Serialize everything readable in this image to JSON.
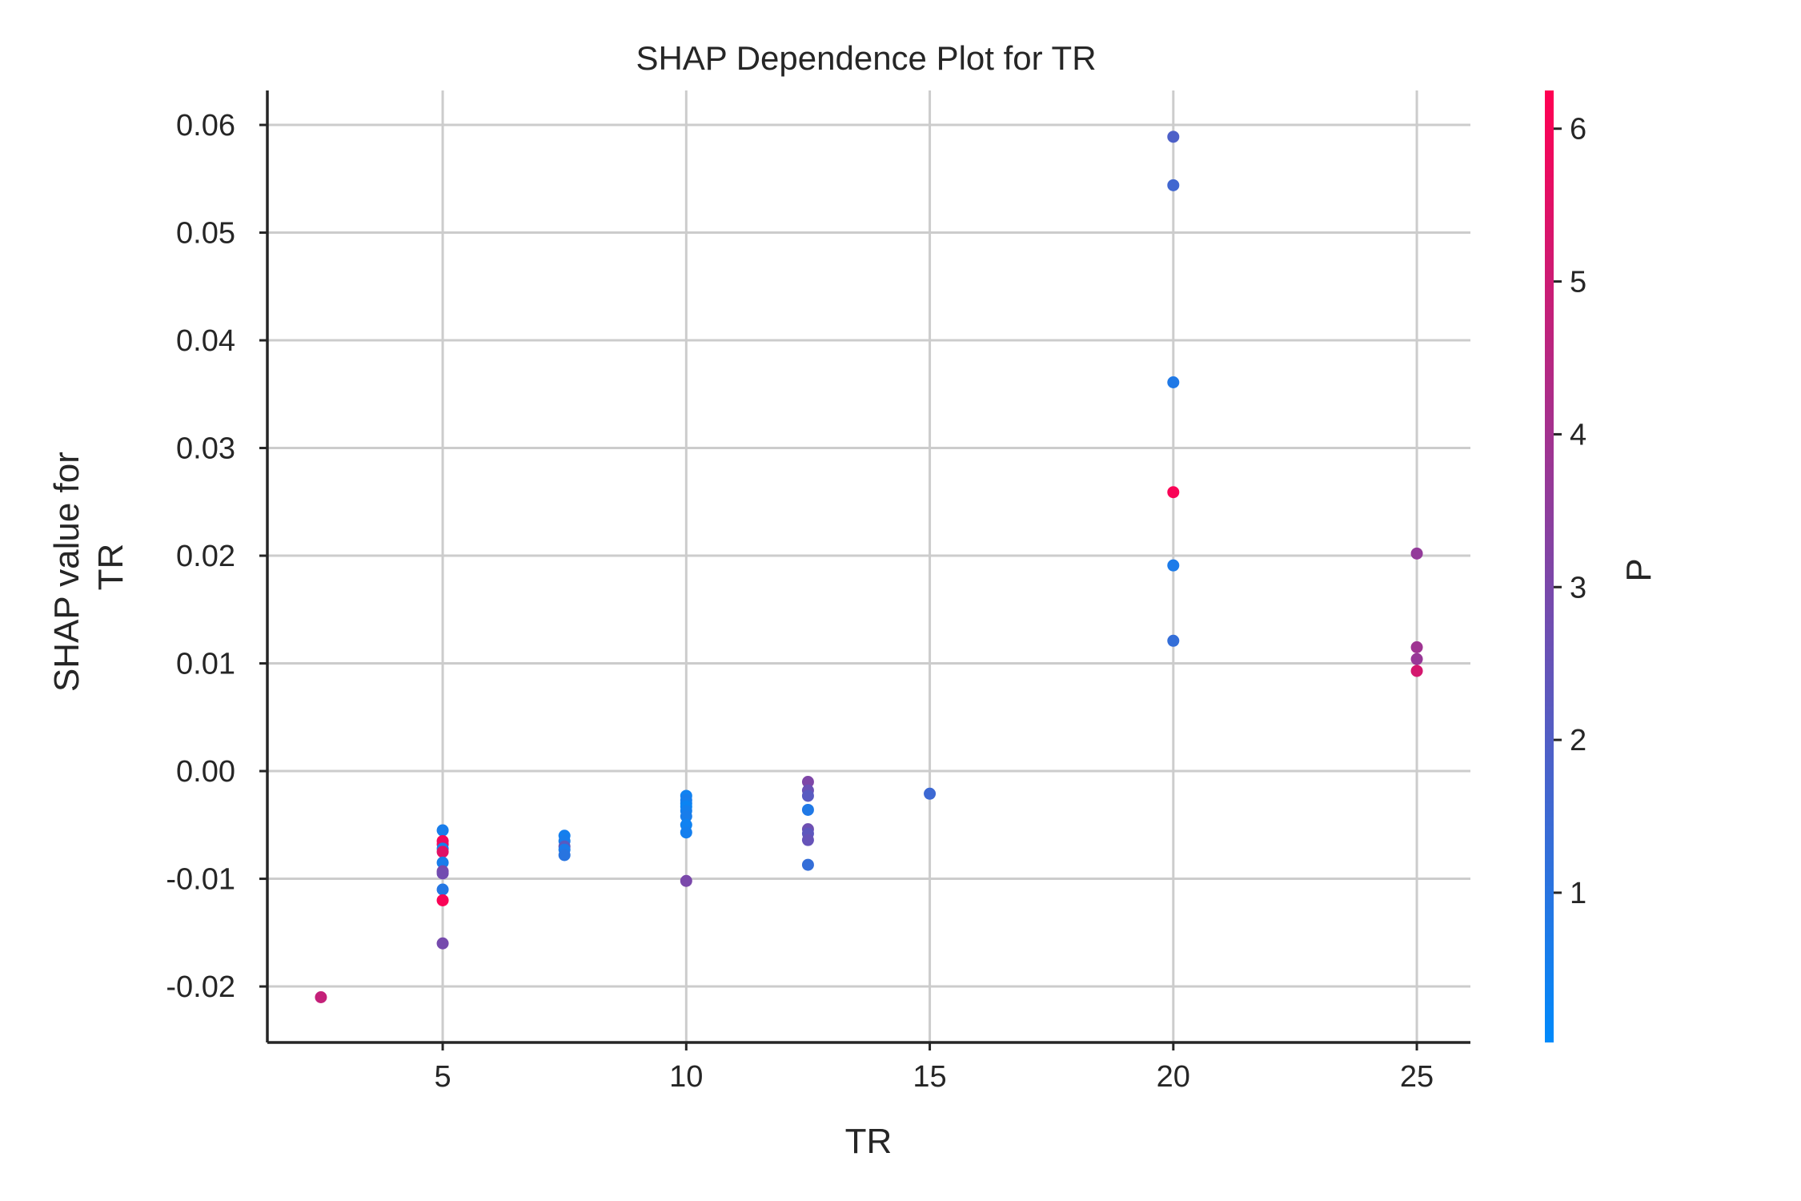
{
  "chart_data": {
    "type": "scatter",
    "title": "SHAP Dependence Plot for TR",
    "xlabel": "TR",
    "ylabel_lines": [
      "SHAP value for",
      "TR"
    ],
    "xlim": [
      1.4,
      26.1
    ],
    "ylim": [
      -0.0252,
      0.0632
    ],
    "x_ticks": [
      {
        "value": 5,
        "label": "5"
      },
      {
        "value": 10,
        "label": "10"
      },
      {
        "value": 15,
        "label": "15"
      },
      {
        "value": 20,
        "label": "20"
      },
      {
        "value": 25,
        "label": "25"
      }
    ],
    "y_ticks": [
      {
        "value": 0.06,
        "label": "0.06"
      },
      {
        "value": 0.05,
        "label": "0.05"
      },
      {
        "value": 0.04,
        "label": "0.04"
      },
      {
        "value": 0.03,
        "label": "0.03"
      },
      {
        "value": 0.02,
        "label": "0.02"
      },
      {
        "value": 0.01,
        "label": "0.01"
      },
      {
        "value": 0.0,
        "label": "0.00"
      },
      {
        "value": -0.01,
        "label": "-0.01"
      },
      {
        "value": -0.02,
        "label": "-0.02"
      }
    ],
    "grid": true,
    "colorbar": {
      "label": "P",
      "range": [
        0.02,
        6.25
      ],
      "color_low": "#008afb",
      "color_high": "#ff0052",
      "ticks": [
        {
          "value": 1,
          "label": "1"
        },
        {
          "value": 2,
          "label": "2"
        },
        {
          "value": 3,
          "label": "3"
        },
        {
          "value": 4,
          "label": "4"
        },
        {
          "value": 5,
          "label": "5"
        },
        {
          "value": 6,
          "label": "6"
        }
      ]
    },
    "points": [
      {
        "x": 2.5,
        "y": -0.021,
        "p": 4.8
      },
      {
        "x": 5,
        "y": -0.0055,
        "p": 0.6
      },
      {
        "x": 5,
        "y": -0.0065,
        "p": 6.0
      },
      {
        "x": 5,
        "y": -0.0068,
        "p": 5.8
      },
      {
        "x": 5,
        "y": -0.0072,
        "p": 0.5
      },
      {
        "x": 5,
        "y": -0.0075,
        "p": 5.5
      },
      {
        "x": 5,
        "y": -0.0085,
        "p": 0.6
      },
      {
        "x": 5,
        "y": -0.0093,
        "p": 3.0
      },
      {
        "x": 5,
        "y": -0.0095,
        "p": 2.8
      },
      {
        "x": 5,
        "y": -0.011,
        "p": 0.9
      },
      {
        "x": 5,
        "y": -0.012,
        "p": 6.1
      },
      {
        "x": 5,
        "y": -0.016,
        "p": 2.9
      },
      {
        "x": 7.5,
        "y": -0.006,
        "p": 0.5
      },
      {
        "x": 7.5,
        "y": -0.0065,
        "p": 0.6
      },
      {
        "x": 7.5,
        "y": -0.007,
        "p": 2.2
      },
      {
        "x": 7.5,
        "y": -0.0073,
        "p": 0.7
      },
      {
        "x": 7.5,
        "y": -0.0078,
        "p": 1.0
      },
      {
        "x": 10,
        "y": -0.0023,
        "p": 0.4
      },
      {
        "x": 10,
        "y": -0.0027,
        "p": 0.6
      },
      {
        "x": 10,
        "y": -0.003,
        "p": 0.5
      },
      {
        "x": 10,
        "y": -0.0033,
        "p": 0.3
      },
      {
        "x": 10,
        "y": -0.0037,
        "p": 0.5
      },
      {
        "x": 10,
        "y": -0.0042,
        "p": 0.6
      },
      {
        "x": 10,
        "y": -0.005,
        "p": 0.4
      },
      {
        "x": 10,
        "y": -0.0057,
        "p": 0.5
      },
      {
        "x": 10,
        "y": -0.0102,
        "p": 3.0
      },
      {
        "x": 12.5,
        "y": -0.001,
        "p": 3.1
      },
      {
        "x": 12.5,
        "y": -0.0018,
        "p": 2.6
      },
      {
        "x": 12.5,
        "y": -0.0023,
        "p": 2.2
      },
      {
        "x": 12.5,
        "y": -0.0036,
        "p": 0.8
      },
      {
        "x": 12.5,
        "y": -0.0054,
        "p": 2.7
      },
      {
        "x": 12.5,
        "y": -0.0058,
        "p": 2.3
      },
      {
        "x": 12.5,
        "y": -0.0064,
        "p": 2.5
      },
      {
        "x": 12.5,
        "y": -0.0087,
        "p": 1.3
      },
      {
        "x": 15,
        "y": -0.0021,
        "p": 1.5
      },
      {
        "x": 20,
        "y": 0.0589,
        "p": 1.9
      },
      {
        "x": 20,
        "y": 0.0544,
        "p": 1.6
      },
      {
        "x": 20,
        "y": 0.0361,
        "p": 0.8
      },
      {
        "x": 20,
        "y": 0.0259,
        "p": 6.1
      },
      {
        "x": 20,
        "y": 0.0191,
        "p": 0.7
      },
      {
        "x": 20,
        "y": 0.0121,
        "p": 1.3
      },
      {
        "x": 25,
        "y": 0.0202,
        "p": 3.6
      },
      {
        "x": 25,
        "y": 0.0115,
        "p": 3.9
      },
      {
        "x": 25,
        "y": 0.0104,
        "p": 3.7
      },
      {
        "x": 25,
        "y": 0.0093,
        "p": 5.2
      }
    ]
  }
}
